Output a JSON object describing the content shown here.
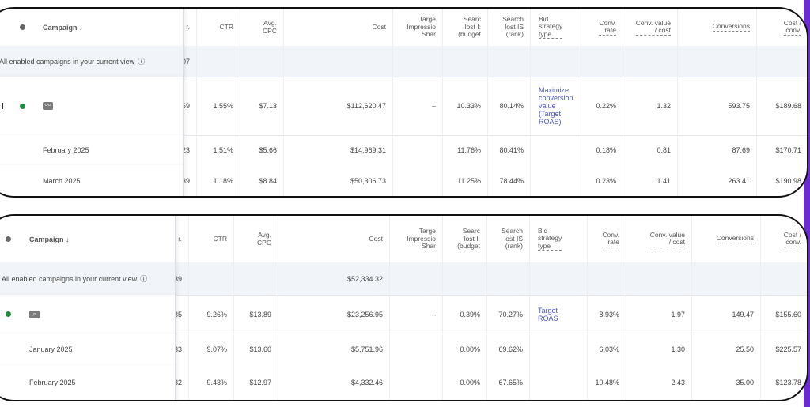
{
  "colors": {
    "accent_purple": "#6a2bd0",
    "status_green": "#1e8e3e",
    "link_blue": "#4a55c9"
  },
  "tables": [
    {
      "headers": {
        "campaign": "Campaign ↓",
        "clipped": "r.",
        "ctr": "CTR",
        "cpc": "Avg.\nCPC",
        "cost": "Cost",
        "target_is": "Targe\nImpressio\nShar",
        "lost_budget": "Searc\nlost I:\n(budget",
        "lost_rank": "Search\nlost IS\n(rank)",
        "bid": "Bid\nstrategy\ntype",
        "conv_rate": "Conv.\nrate",
        "conv_value_cost": "Conv. value\n/ cost",
        "conversions": "Conversions",
        "cost_conv": "Cost /\nconv."
      },
      "total_label": "otal: All enabled campaigns in your current view",
      "help_icon": "help-circle-icon",
      "campaign_type_icon": "performance-trend-icon",
      "rows": [
        {
          "kind": "total",
          "label": "",
          "clipped": "07",
          "ctr": "",
          "cpc": "",
          "cost": "",
          "target_is": "",
          "lost_budget": "",
          "lost_rank": "",
          "bid": "",
          "conv_rate": "",
          "conv_value_cost": "",
          "conversions": "",
          "cost_conv": ""
        },
        {
          "kind": "campaign",
          "label": "",
          "status": "enabled",
          "clipped": "59",
          "ctr": "1.55%",
          "cpc": "$7.13",
          "cost": "$112,620.47",
          "target_is": "–",
          "lost_budget": "10.33%",
          "lost_rank": "80.14%",
          "bid": "Maximize\nconversion\nvalue\n(Target\nROAS)",
          "conv_rate": "0.22%",
          "conv_value_cost": "1.32",
          "conversions": "593.75",
          "cost_conv": "$189.68"
        },
        {
          "kind": "month",
          "label": "February 2025",
          "clipped": "23",
          "ctr": "1.51%",
          "cpc": "$5.66",
          "cost": "$14,969.31",
          "target_is": "",
          "lost_budget": "11.76%",
          "lost_rank": "80.41%",
          "bid": "",
          "conv_rate": "0.18%",
          "conv_value_cost": "0.81",
          "conversions": "87.69",
          "cost_conv": "$170.71"
        },
        {
          "kind": "month",
          "label": "March 2025",
          "clipped": "39",
          "ctr": "1.18%",
          "cpc": "$8.84",
          "cost": "$50,306.73",
          "target_is": "",
          "lost_budget": "11.25%",
          "lost_rank": "78.44%",
          "bid": "",
          "conv_rate": "0.23%",
          "conv_value_cost": "1.41",
          "conversions": "263.41",
          "cost_conv": "$190.98"
        }
      ]
    },
    {
      "headers": {
        "campaign": "Campaign ↓",
        "clipped": "r.",
        "ctr": "CTR",
        "cpc": "Avg.\nCPC",
        "cost": "Cost",
        "target_is": "Targe\nImpressio\nShar",
        "lost_budget": "Searc\nlost I:\n(budget",
        "lost_rank": "Search\nlost IS\n(rank)",
        "bid": "Bid\nstrategy\ntype",
        "conv_rate": "Conv.\nrate",
        "conv_value_cost": "Conv. value\n/ cost",
        "conversions": "Conversions",
        "cost_conv": "Cost /\nconv."
      },
      "total_label": "All enabled campaigns in your current view",
      "help_icon": "help-circle-icon",
      "campaign_type_icon": "search-campaign-icon",
      "rows": [
        {
          "kind": "total",
          "label": "",
          "clipped": "39",
          "ctr": "",
          "cpc": "",
          "cost": "$52,334.32",
          "target_is": "",
          "lost_budget": "",
          "lost_rank": "",
          "bid": "",
          "conv_rate": "",
          "conv_value_cost": "",
          "conversions": "",
          "cost_conv": ""
        },
        {
          "kind": "campaign",
          "label": "",
          "status": "enabled",
          "clipped": "35",
          "ctr": "9.26%",
          "cpc": "$13.89",
          "cost": "$23,256.95",
          "target_is": "–",
          "lost_budget": "0.39%",
          "lost_rank": "70.27%",
          "bid": "Target\nROAS",
          "conv_rate": "8.93%",
          "conv_value_cost": "1.97",
          "conversions": "149.47",
          "cost_conv": "$155.60"
        },
        {
          "kind": "month",
          "label": "January 2025",
          "clipped": "33",
          "ctr": "9.07%",
          "cpc": "$13.60",
          "cost": "$5,751.96",
          "target_is": "",
          "lost_budget": "0.00%",
          "lost_rank": "69.62%",
          "bid": "",
          "conv_rate": "6.03%",
          "conv_value_cost": "1.30",
          "conversions": "25.50",
          "cost_conv": "$225.57"
        },
        {
          "kind": "month",
          "label": "February 2025",
          "clipped": "32",
          "ctr": "9.43%",
          "cpc": "$12.97",
          "cost": "$4,332.46",
          "target_is": "",
          "lost_budget": "0.00%",
          "lost_rank": "67.65%",
          "bid": "",
          "conv_rate": "10.48%",
          "conv_value_cost": "2.43",
          "conversions": "35.00",
          "cost_conv": "$123.78"
        }
      ]
    }
  ]
}
